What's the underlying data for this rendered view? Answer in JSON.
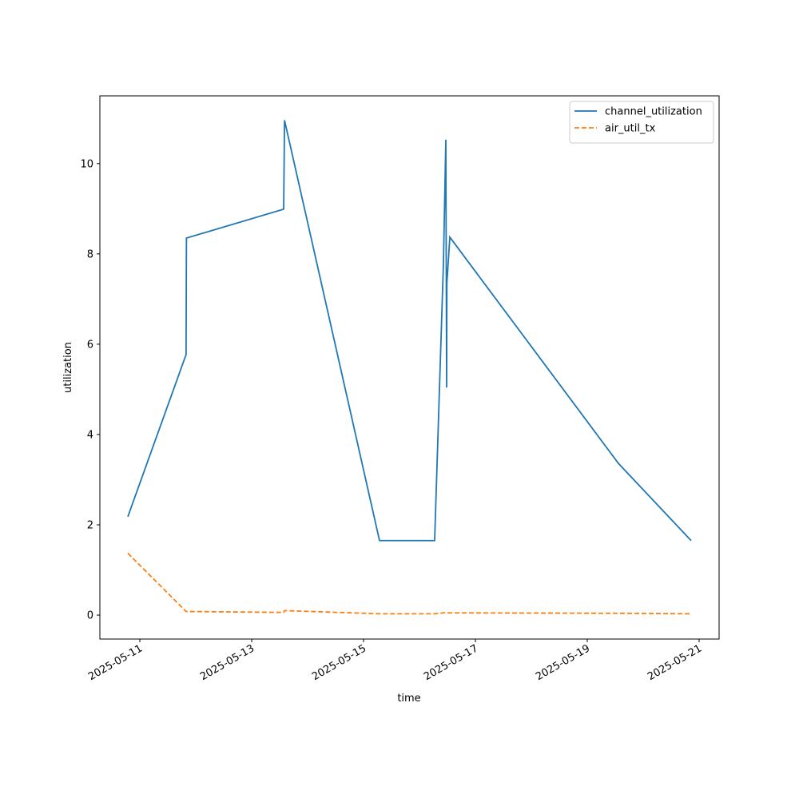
{
  "chart_data": {
    "type": "line",
    "x_label": "time",
    "y_label": "utilization",
    "x": [
      "2025-05-10T18:51",
      "2025-05-11T19:50",
      "2025-05-11T20:00",
      "2025-05-13T13:43",
      "2025-05-13T14:05",
      "2025-05-15T06:51",
      "2025-05-16T06:30",
      "2025-05-16T10:17",
      "2025-05-16T11:18",
      "2025-05-16T11:39",
      "2025-05-16T11:45",
      "2025-05-16T13:02",
      "2025-05-19T13:22",
      "2025-05-20T20:34"
    ],
    "series": [
      {
        "name": "channel_utilization",
        "color": "#1f77b4",
        "linestyle": "solid",
        "values": [
          2.18,
          5.77,
          8.35,
          8.99,
          10.96,
          1.65,
          1.65,
          7.8,
          10.53,
          5.04,
          7.35,
          8.37,
          3.36,
          1.65
        ]
      },
      {
        "name": "air_util_tx",
        "color": "#ff7f0e",
        "linestyle": "dashed",
        "values": [
          1.37,
          0.08,
          0.08,
          0.06,
          0.1,
          0.03,
          0.03,
          0.05,
          0.06,
          0.05,
          0.05,
          0.05,
          0.04,
          0.03
        ]
      }
    ],
    "xlim": [
      "2025-05-10T06:51",
      "2025-05-21T08:34"
    ],
    "xticks": [
      "2025-05-11",
      "2025-05-13",
      "2025-05-15",
      "2025-05-17",
      "2025-05-19",
      "2025-05-21"
    ],
    "ylim": [
      -0.53,
      11.5
    ],
    "yticks": [
      0,
      2,
      4,
      6,
      8,
      10
    ],
    "grid": false,
    "legend": "upper right"
  }
}
